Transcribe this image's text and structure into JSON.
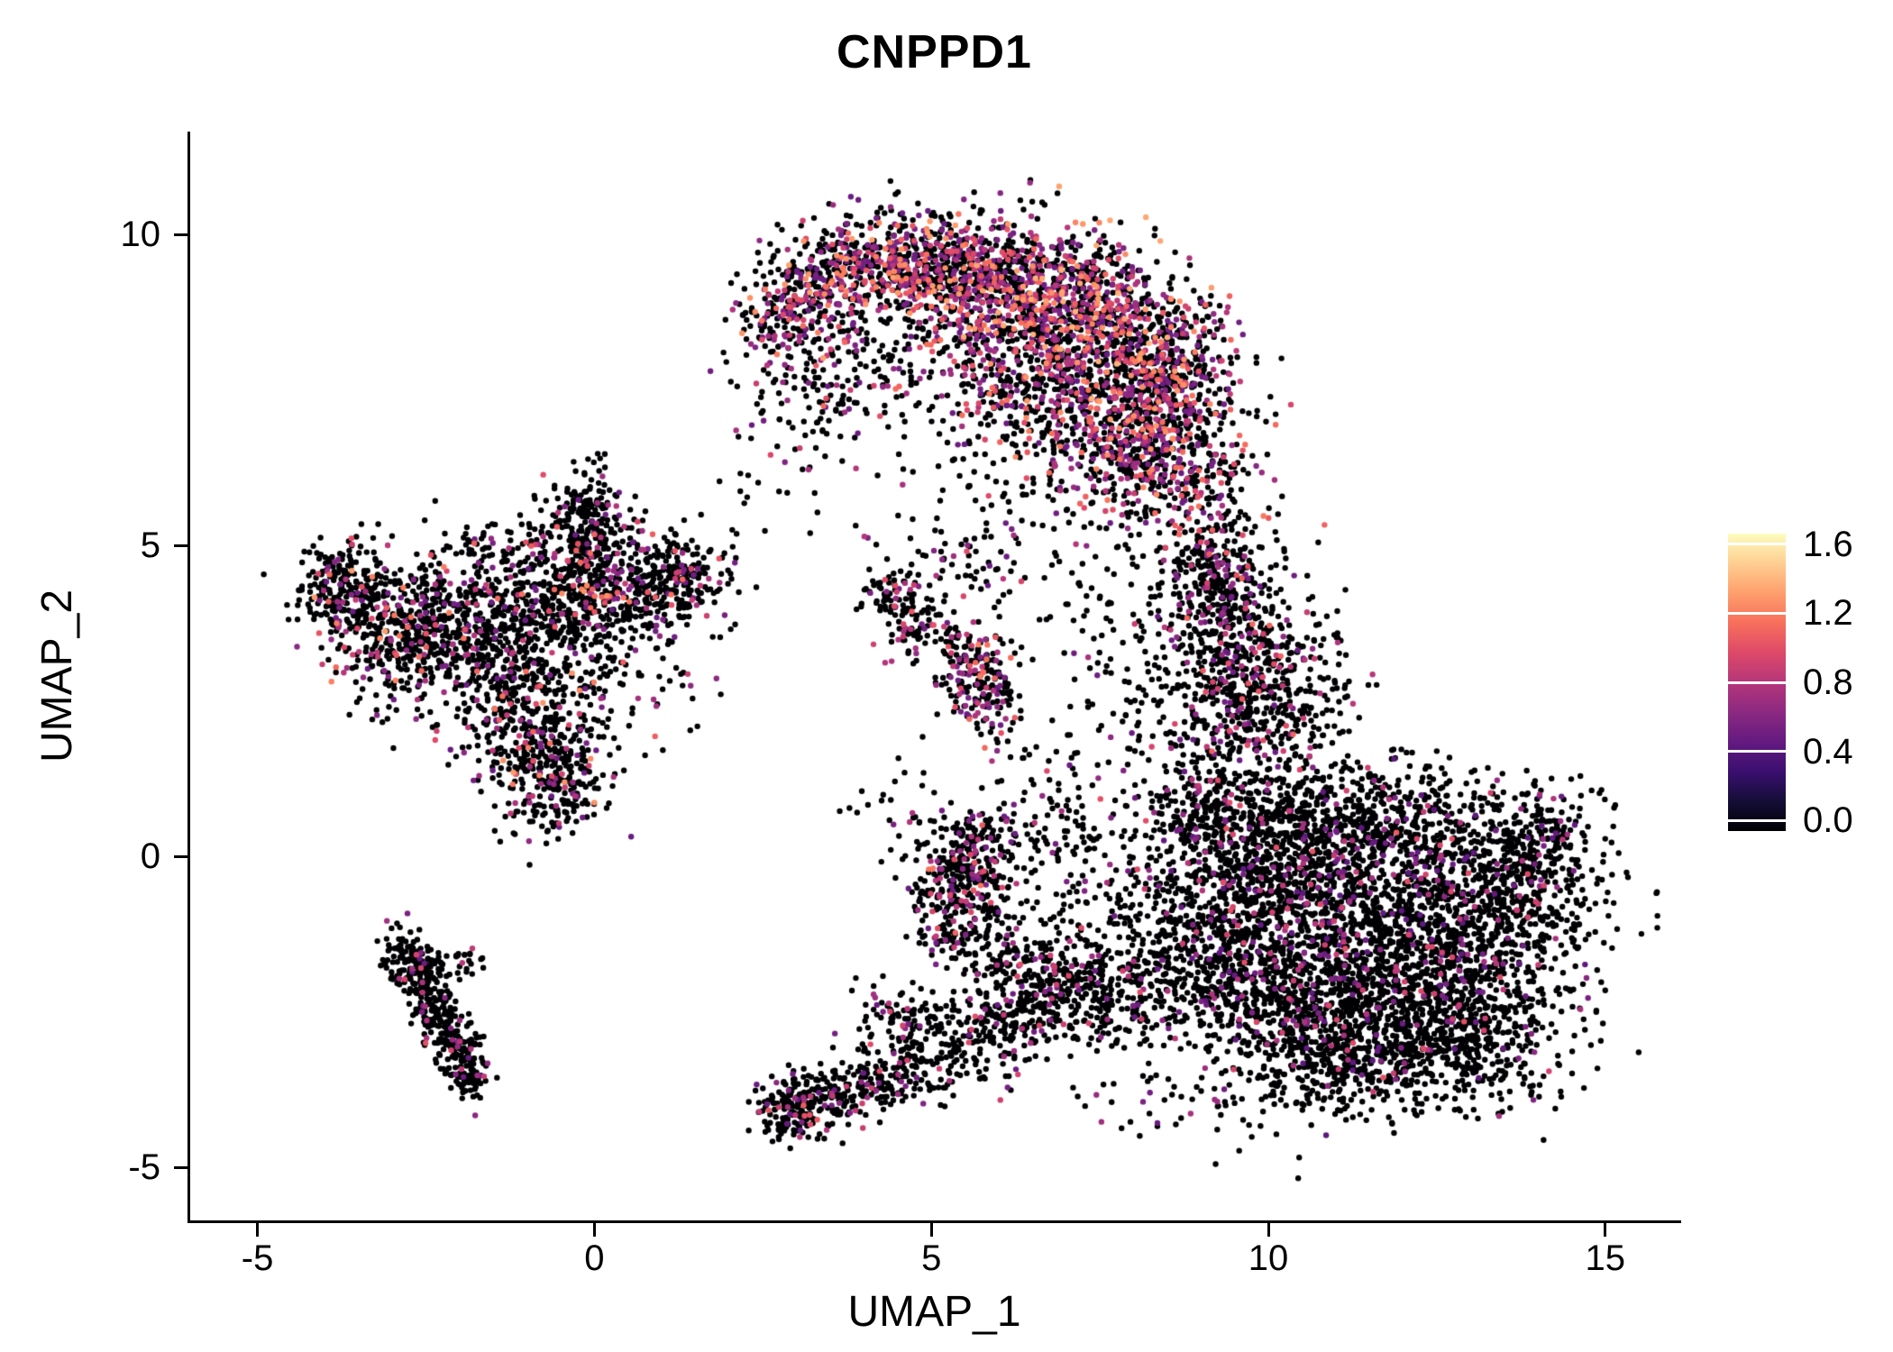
{
  "title": "CNPPD1",
  "axes": {
    "x": {
      "label": "UMAP_1",
      "ticks": [
        {
          "v": -5,
          "label": "-5"
        },
        {
          "v": 0,
          "label": "0"
        },
        {
          "v": 5,
          "label": "5"
        },
        {
          "v": 10,
          "label": "10"
        },
        {
          "v": 15,
          "label": "15"
        }
      ]
    },
    "y": {
      "label": "UMAP_2",
      "ticks": [
        {
          "v": 10,
          "label": "10"
        },
        {
          "v": 5,
          "label": "5"
        },
        {
          "v": 0,
          "label": "0"
        },
        {
          "v": -5,
          "label": "-5"
        }
      ]
    }
  },
  "legend": {
    "ticks": [
      {
        "v": 1.6,
        "label": "1.6"
      },
      {
        "v": 1.2,
        "label": "1.2"
      },
      {
        "v": 0.8,
        "label": "0.8"
      },
      {
        "v": 0.4,
        "label": "0.4"
      },
      {
        "v": 0.0,
        "label": "0.0"
      }
    ]
  },
  "chart_data": {
    "type": "scatter",
    "title": "CNPPD1",
    "xlabel": "UMAP_1",
    "ylabel": "UMAP_2",
    "xlim": [
      -6.0,
      16.1
    ],
    "ylim": [
      -5.9,
      12.2
    ],
    "grid": false,
    "legend_position": "right",
    "colormap": "magma",
    "color_range": [
      0.0,
      1.6
    ],
    "point_radius_px": 3.2,
    "seed": 42,
    "colormap_stops": [
      {
        "t": 0.0,
        "color": "#000004"
      },
      {
        "t": 0.1,
        "color": "#140e36"
      },
      {
        "t": 0.2,
        "color": "#3b0f70"
      },
      {
        "t": 0.3,
        "color": "#641a80"
      },
      {
        "t": 0.4,
        "color": "#8c2981"
      },
      {
        "t": 0.5,
        "color": "#b5367a"
      },
      {
        "t": 0.6,
        "color": "#de4968"
      },
      {
        "t": 0.7,
        "color": "#f76f5c"
      },
      {
        "t": 0.8,
        "color": "#fe9f6d"
      },
      {
        "t": 0.9,
        "color": "#fece91"
      },
      {
        "t": 1.0,
        "color": "#fcfdbf"
      }
    ],
    "cluster_fields": [
      "cx",
      "cy",
      "sx",
      "sy",
      "n",
      "colored_frac",
      "vmin",
      "vmax"
    ],
    "clusters": [
      [
        3.0,
        8.85,
        0.45,
        0.45,
        260,
        0.4,
        0.5,
        1.3
      ],
      [
        4.1,
        9.5,
        0.6,
        0.4,
        380,
        0.4,
        0.5,
        1.3
      ],
      [
        5.3,
        9.4,
        0.7,
        0.45,
        480,
        0.42,
        0.5,
        1.3
      ],
      [
        6.5,
        9.1,
        0.7,
        0.55,
        560,
        0.45,
        0.5,
        1.35
      ],
      [
        7.6,
        8.5,
        0.65,
        0.65,
        560,
        0.45,
        0.5,
        1.35
      ],
      [
        8.5,
        7.6,
        0.55,
        0.7,
        480,
        0.42,
        0.5,
        1.3
      ],
      [
        8.4,
        6.4,
        0.55,
        0.65,
        360,
        0.4,
        0.5,
        1.3
      ],
      [
        7.3,
        6.9,
        0.65,
        0.6,
        300,
        0.4,
        0.5,
        1.25
      ],
      [
        6.3,
        7.9,
        0.75,
        0.55,
        280,
        0.38,
        0.5,
        1.25
      ],
      [
        4.6,
        8.0,
        0.9,
        0.7,
        150,
        0.3,
        0.5,
        1.2
      ],
      [
        9.3,
        5.2,
        0.35,
        0.8,
        130,
        0.3,
        0.5,
        1.1
      ],
      [
        5.6,
        5.9,
        0.8,
        0.5,
        60,
        0.25,
        0.5,
        1.0
      ],
      [
        3.4,
        7.6,
        0.5,
        0.6,
        90,
        0.3,
        0.5,
        1.1
      ],
      [
        11.3,
        -1.0,
        1.4,
        1.0,
        1300,
        0.1,
        0.45,
        1.0
      ],
      [
        12.4,
        -2.3,
        1.0,
        0.75,
        750,
        0.1,
        0.45,
        1.0
      ],
      [
        10.4,
        -2.4,
        0.9,
        0.75,
        600,
        0.1,
        0.45,
        1.0
      ],
      [
        13.4,
        -0.6,
        0.75,
        0.7,
        480,
        0.08,
        0.45,
        1.0
      ],
      [
        10.0,
        0.2,
        0.8,
        0.65,
        480,
        0.12,
        0.45,
        1.05
      ],
      [
        11.7,
        0.7,
        1.0,
        0.5,
        380,
        0.1,
        0.45,
        1.0
      ],
      [
        14.1,
        0.2,
        0.35,
        0.45,
        150,
        0.08,
        0.45,
        0.9
      ],
      [
        9.4,
        -1.3,
        0.5,
        0.9,
        300,
        0.1,
        0.45,
        1.0
      ],
      [
        12.8,
        -3.2,
        0.7,
        0.45,
        250,
        0.08,
        0.45,
        0.9
      ],
      [
        11.0,
        -3.3,
        0.6,
        0.4,
        200,
        0.08,
        0.45,
        0.9
      ],
      [
        9.0,
        0.9,
        0.45,
        0.5,
        160,
        0.15,
        0.45,
        1.0
      ],
      [
        9.5,
        3.6,
        0.5,
        0.8,
        320,
        0.2,
        0.5,
        1.1
      ],
      [
        9.8,
        2.3,
        0.55,
        0.7,
        300,
        0.18,
        0.5,
        1.1
      ],
      [
        9.1,
        4.6,
        0.4,
        0.5,
        160,
        0.22,
        0.5,
        1.1
      ],
      [
        8.4,
        2.6,
        0.7,
        0.9,
        130,
        0.15,
        0.5,
        1.0
      ],
      [
        10.6,
        2.9,
        0.4,
        0.6,
        100,
        0.12,
        0.5,
        1.0
      ],
      [
        -3.6,
        4.2,
        0.4,
        0.45,
        200,
        0.18,
        0.5,
        1.3
      ],
      [
        -2.9,
        3.3,
        0.45,
        0.55,
        260,
        0.18,
        0.5,
        1.3
      ],
      [
        -2.3,
        3.9,
        0.45,
        0.45,
        200,
        0.15,
        0.5,
        1.2
      ],
      [
        -1.3,
        3.1,
        0.55,
        0.6,
        240,
        0.15,
        0.5,
        1.2
      ],
      [
        -0.6,
        3.9,
        0.6,
        0.6,
        330,
        0.15,
        0.5,
        1.25
      ],
      [
        -0.2,
        5.0,
        0.4,
        0.5,
        200,
        0.15,
        0.5,
        1.2
      ],
      [
        -0.1,
        5.7,
        0.22,
        0.3,
        80,
        0.15,
        0.5,
        1.1
      ],
      [
        0.6,
        4.4,
        0.6,
        0.45,
        280,
        0.15,
        0.5,
        1.2
      ],
      [
        1.3,
        4.5,
        0.35,
        0.35,
        140,
        0.12,
        0.5,
        1.1
      ],
      [
        -0.9,
        2.1,
        0.5,
        0.55,
        240,
        0.18,
        0.5,
        1.25
      ],
      [
        -0.6,
        1.15,
        0.4,
        0.45,
        240,
        0.25,
        0.5,
        1.3
      ],
      [
        0.2,
        3.1,
        0.8,
        0.7,
        130,
        0.12,
        0.5,
        1.1
      ],
      [
        -1.7,
        4.6,
        0.5,
        0.5,
        120,
        0.12,
        0.5,
        1.1
      ],
      [
        -3.9,
        4.4,
        0.25,
        0.3,
        70,
        0.15,
        0.5,
        1.1
      ],
      [
        -2.85,
        -1.55,
        0.18,
        0.2,
        70,
        0.08,
        0.5,
        1.0
      ],
      [
        -2.6,
        -1.95,
        0.18,
        0.22,
        80,
        0.08,
        0.5,
        1.0
      ],
      [
        -2.4,
        -2.4,
        0.16,
        0.22,
        80,
        0.08,
        0.5,
        1.0
      ],
      [
        -2.2,
        -2.8,
        0.16,
        0.22,
        75,
        0.08,
        0.5,
        1.0
      ],
      [
        -2.0,
        -3.2,
        0.15,
        0.2,
        70,
        0.08,
        0.5,
        1.0
      ],
      [
        -1.85,
        -3.6,
        0.15,
        0.18,
        65,
        0.12,
        0.5,
        1.0
      ],
      [
        -2.2,
        -1.75,
        0.25,
        0.12,
        50,
        0.08,
        0.5,
        1.0
      ],
      [
        4.55,
        3.95,
        0.3,
        0.3,
        70,
        0.2,
        0.5,
        1.1
      ],
      [
        4.3,
        4.3,
        0.2,
        0.2,
        35,
        0.15,
        0.5,
        1.0
      ],
      [
        5.0,
        3.6,
        0.25,
        0.25,
        40,
        0.2,
        0.5,
        1.0
      ],
      [
        5.65,
        2.95,
        0.3,
        0.4,
        170,
        0.38,
        0.5,
        1.2
      ],
      [
        5.9,
        2.3,
        0.2,
        0.3,
        50,
        0.3,
        0.5,
        1.1
      ],
      [
        5.3,
        4.6,
        0.5,
        0.3,
        40,
        0.15,
        0.5,
        1.0
      ],
      [
        2.95,
        -4.05,
        0.28,
        0.28,
        160,
        0.18,
        0.5,
        1.1
      ],
      [
        3.6,
        -3.85,
        0.35,
        0.25,
        120,
        0.12,
        0.5,
        1.0
      ],
      [
        4.3,
        -3.55,
        0.4,
        0.3,
        110,
        0.12,
        0.5,
        1.0
      ],
      [
        5.1,
        -3.15,
        0.45,
        0.35,
        120,
        0.12,
        0.5,
        1.0
      ],
      [
        5.9,
        -2.75,
        0.5,
        0.4,
        150,
        0.12,
        0.5,
        1.0
      ],
      [
        6.6,
        -2.3,
        0.5,
        0.4,
        150,
        0.12,
        0.5,
        1.0
      ],
      [
        7.3,
        -2.0,
        0.5,
        0.45,
        150,
        0.1,
        0.5,
        1.0
      ],
      [
        8.0,
        -2.3,
        0.5,
        0.5,
        130,
        0.1,
        0.5,
        1.0
      ],
      [
        8.4,
        -1.2,
        0.5,
        0.6,
        110,
        0.1,
        0.5,
        1.0
      ],
      [
        5.5,
        -0.35,
        0.38,
        0.5,
        210,
        0.22,
        0.5,
        1.15
      ],
      [
        5.75,
        0.15,
        0.3,
        0.3,
        100,
        0.2,
        0.5,
        1.1
      ],
      [
        5.25,
        -1.0,
        0.3,
        0.4,
        100,
        0.15,
        0.5,
        1.0
      ],
      [
        7.1,
        -0.5,
        0.8,
        0.7,
        120,
        0.1,
        0.5,
        1.0
      ],
      [
        6.7,
        0.9,
        0.5,
        0.55,
        70,
        0.12,
        0.5,
        1.0
      ],
      [
        4.4,
        -2.5,
        0.4,
        0.3,
        60,
        0.1,
        0.5,
        1.0
      ],
      [
        6.1,
        -1.6,
        0.4,
        0.4,
        90,
        0.12,
        0.5,
        1.0
      ],
      [
        6.3,
        4.8,
        0.9,
        0.6,
        35,
        0.15,
        0.5,
        1.0
      ],
      [
        7.6,
        4.2,
        0.7,
        0.7,
        40,
        0.12,
        0.5,
        1.0
      ],
      [
        2.8,
        6.7,
        0.5,
        0.8,
        40,
        0.2,
        0.5,
        1.1
      ],
      [
        8.8,
        -3.9,
        0.8,
        0.4,
        50,
        0.08,
        0.5,
        0.9
      ],
      [
        4.7,
        0.6,
        0.5,
        0.5,
        35,
        0.1,
        0.5,
        1.0
      ]
    ]
  }
}
